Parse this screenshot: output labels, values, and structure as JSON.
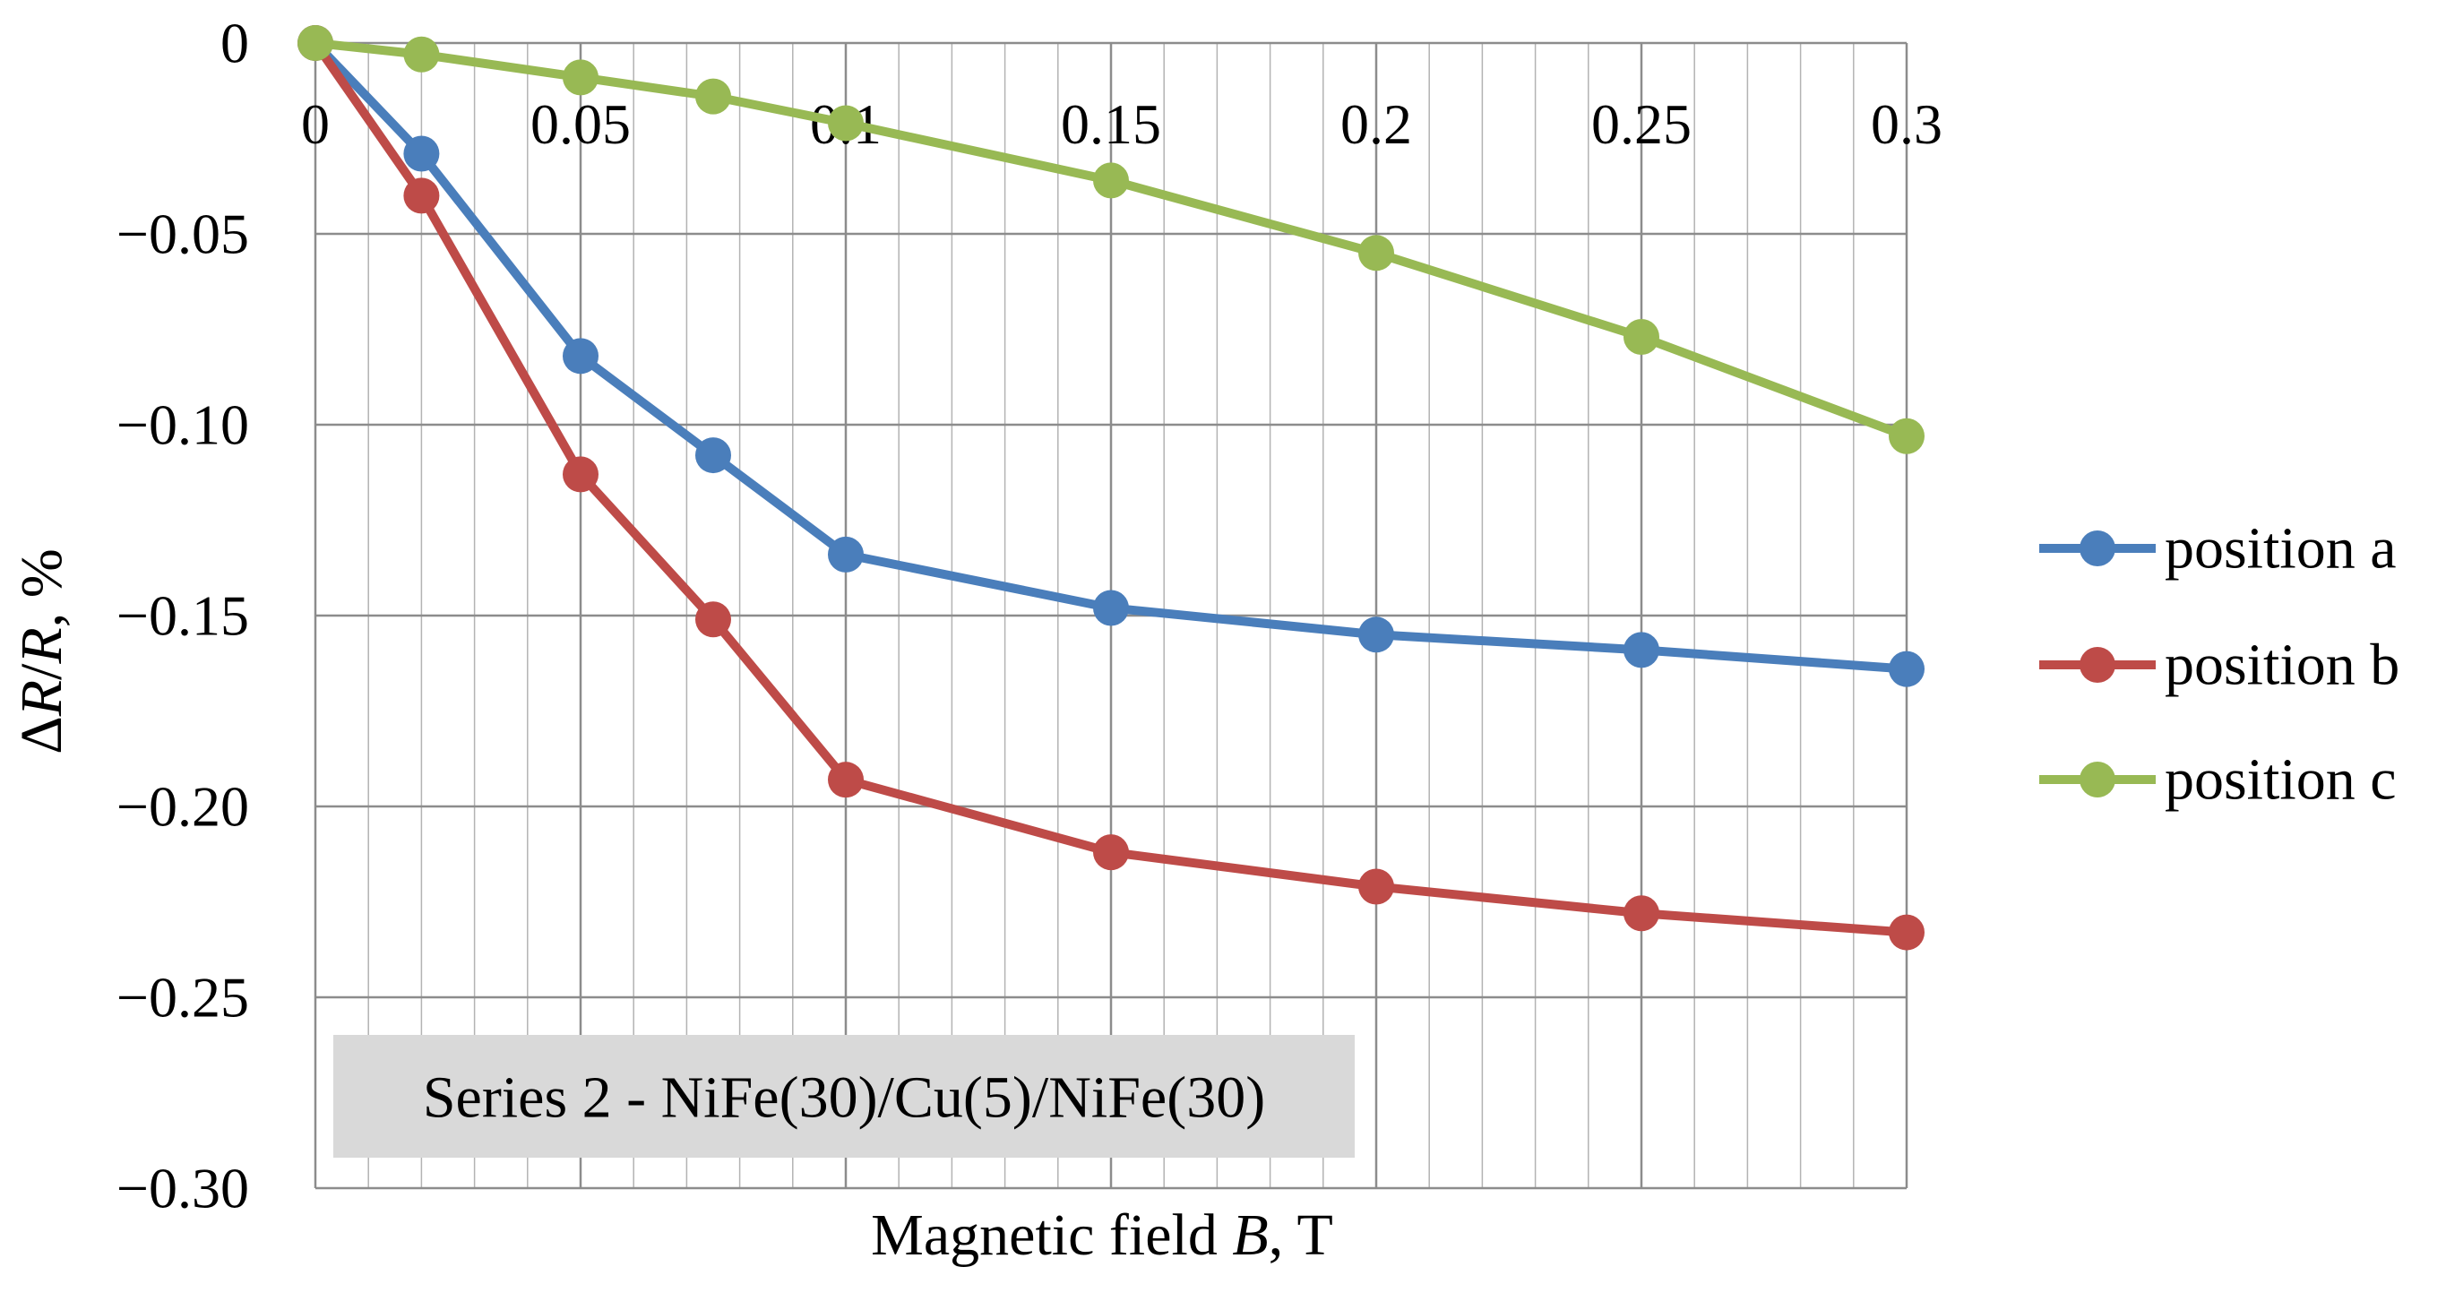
{
  "chart_data": {
    "type": "line",
    "title": "",
    "xlabel": "Magnetic field B, T",
    "ylabel": "ΔR/R, %",
    "xlabel_parts": {
      "prefix": "Magnetic field ",
      "var": "B",
      "suffix": ", T"
    },
    "ylabel_parts": {
      "delta": "Δ",
      "var1": "R",
      "slash": "/",
      "var2": "R",
      "suffix": ", %"
    },
    "xlim": [
      0,
      0.3
    ],
    "ylim": [
      -0.3,
      0
    ],
    "x_ticks": [
      0,
      0.05,
      0.1,
      0.15,
      0.2,
      0.25,
      0.3
    ],
    "x_tick_labels": [
      "0",
      "0.05",
      "0.1",
      "0.15",
      "0.2",
      "0.25",
      "0.3"
    ],
    "y_ticks": [
      0,
      -0.05,
      -0.1,
      -0.15,
      -0.2,
      -0.25,
      -0.3
    ],
    "y_tick_labels": [
      "0",
      "−0.05",
      "−0.10",
      "−0.15",
      "−0.20",
      "−0.25",
      "−0.30"
    ],
    "x_minor_step": 0.01,
    "grid": true,
    "legend_position": "right",
    "annotation": "Series 2 - NiFe(30)/Cu(5)/NiFe(30)",
    "series": [
      {
        "name": "position a",
        "color": "#4a7ebb",
        "x": [
          0,
          0.02,
          0.05,
          0.075,
          0.1,
          0.15,
          0.2,
          0.25,
          0.3
        ],
        "values": [
          0,
          -0.029,
          -0.082,
          -0.108,
          -0.134,
          -0.148,
          -0.155,
          -0.159,
          -0.164
        ]
      },
      {
        "name": "position b",
        "color": "#be4b48",
        "x": [
          0,
          0.02,
          0.05,
          0.075,
          0.1,
          0.15,
          0.2,
          0.25,
          0.3
        ],
        "values": [
          0,
          -0.04,
          -0.113,
          -0.151,
          -0.193,
          -0.212,
          -0.221,
          -0.228,
          -0.233
        ]
      },
      {
        "name": "position c",
        "color": "#98b954",
        "x": [
          0,
          0.02,
          0.05,
          0.075,
          0.1,
          0.15,
          0.2,
          0.25,
          0.3
        ],
        "values": [
          0,
          -0.003,
          -0.009,
          -0.014,
          -0.021,
          -0.036,
          -0.055,
          -0.077,
          -0.103
        ]
      }
    ]
  }
}
